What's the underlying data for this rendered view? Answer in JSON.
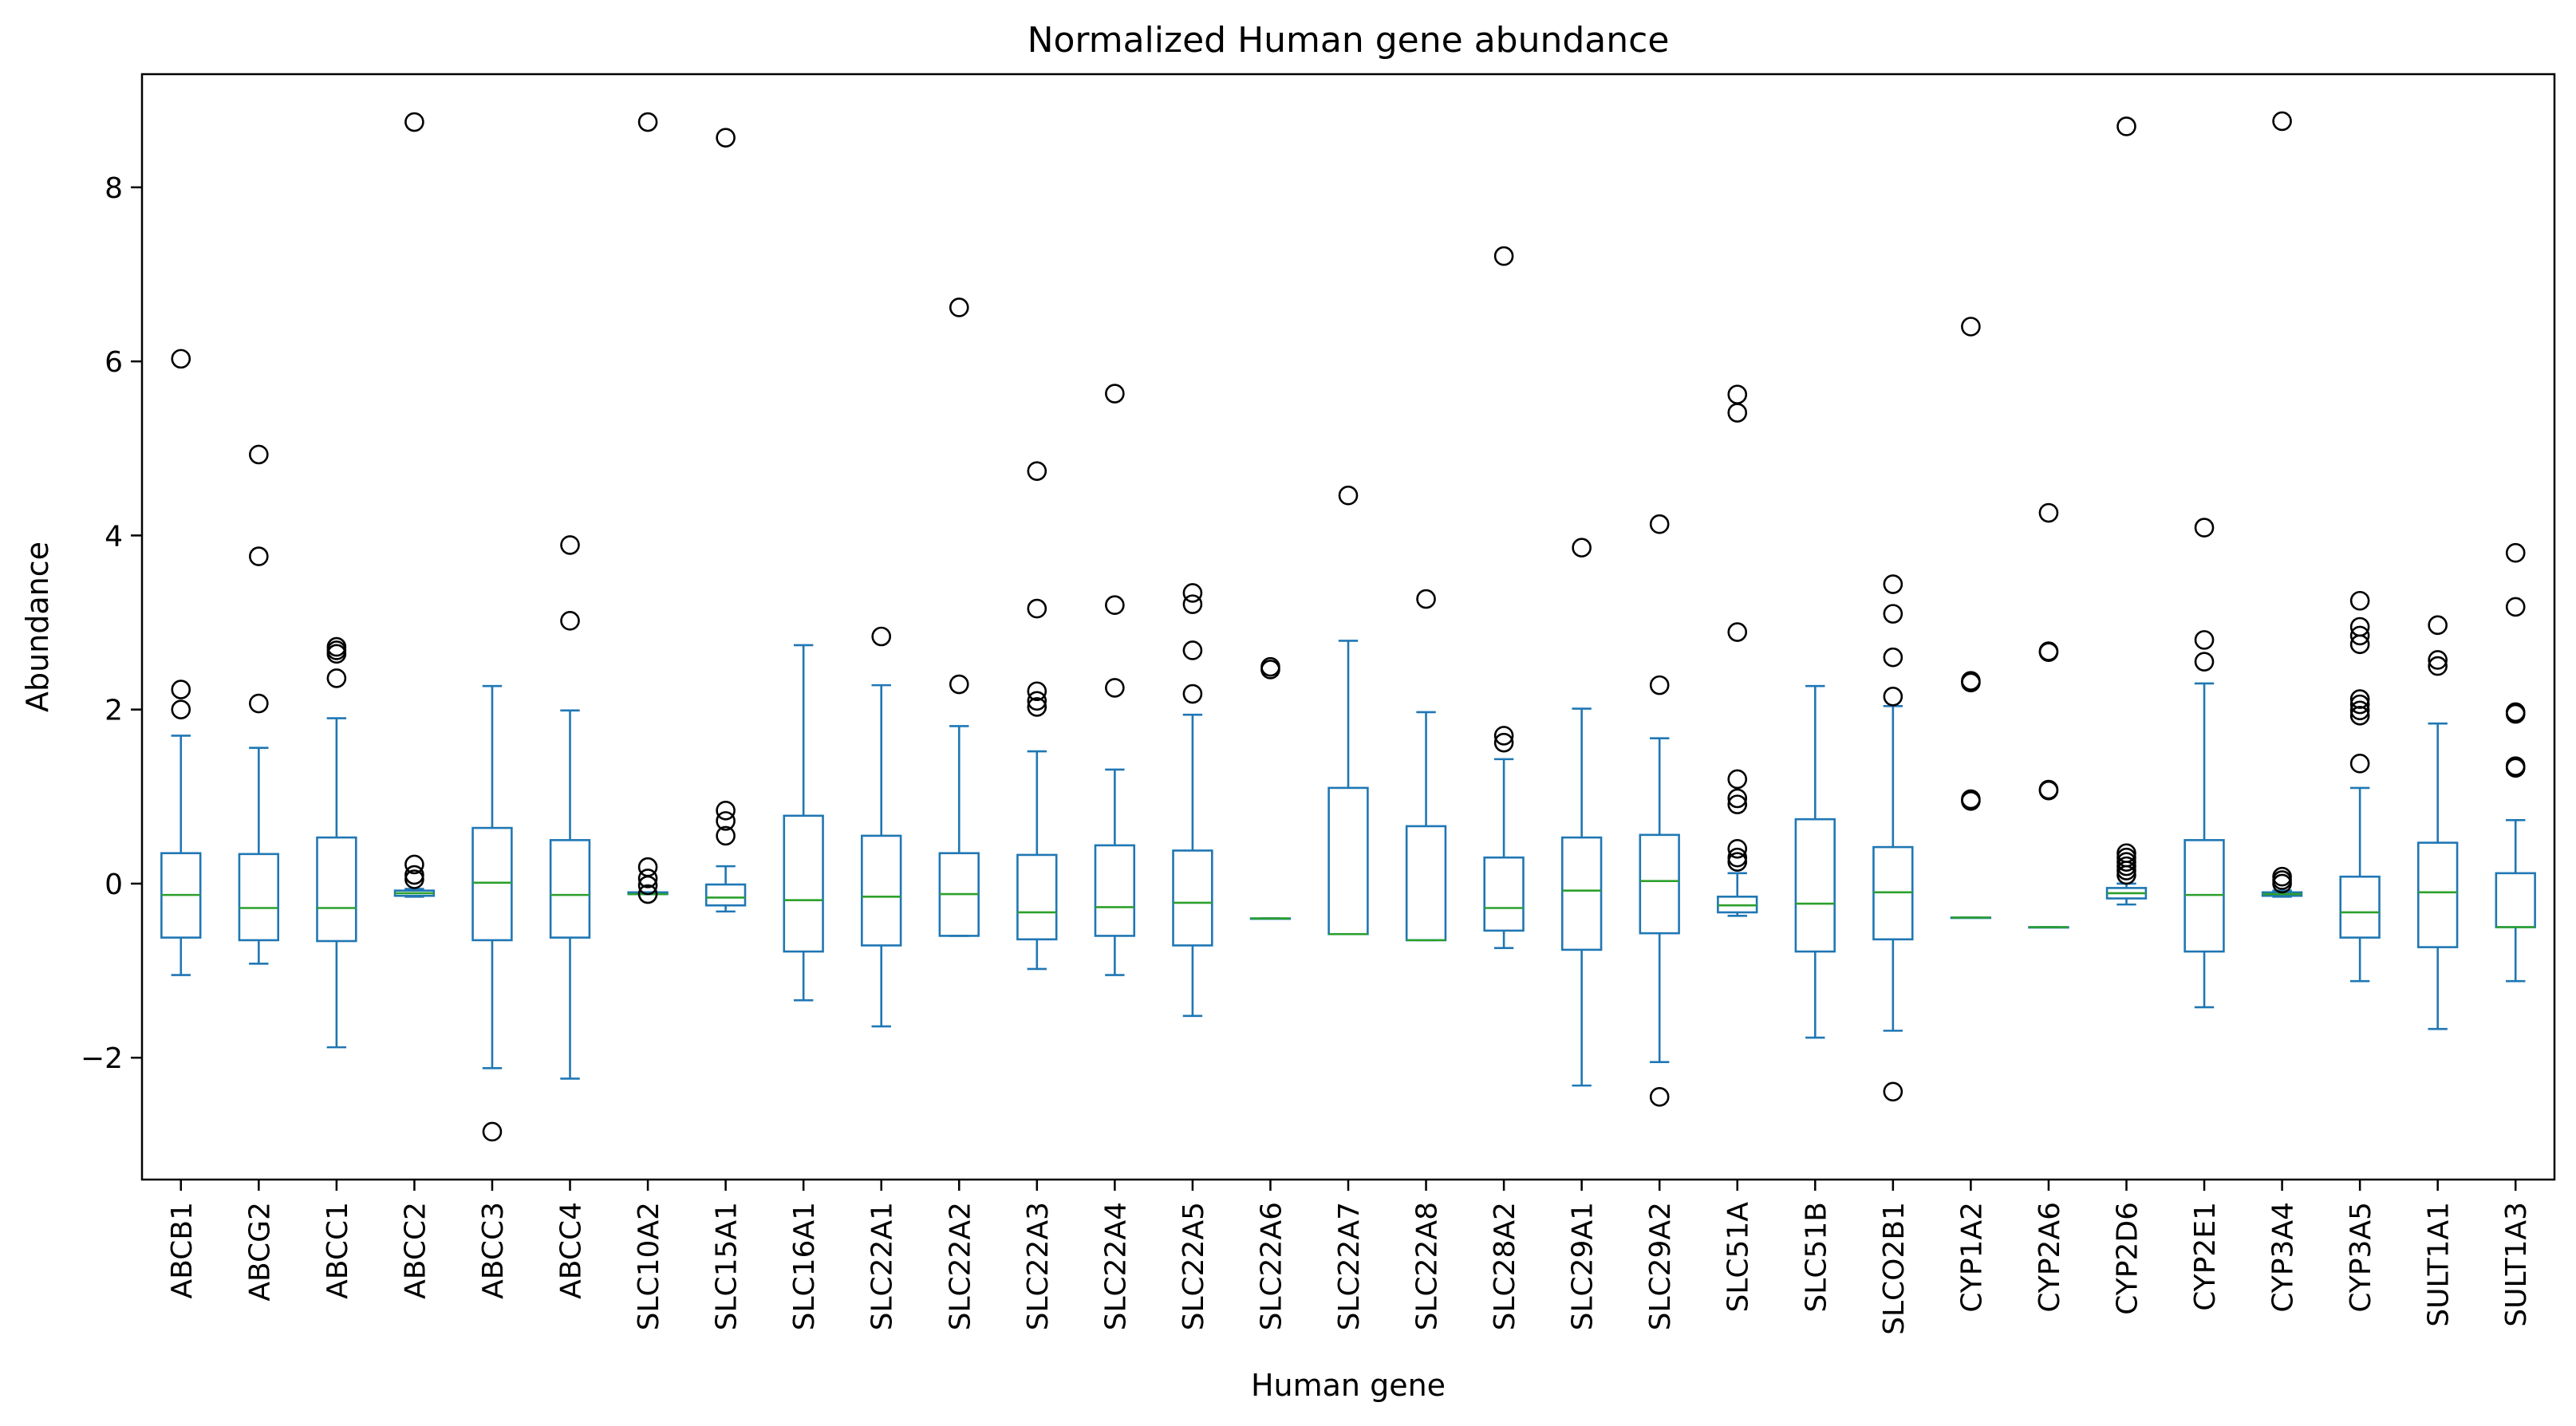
{
  "chart_data": {
    "type": "box",
    "title": "Normalized Human gene abundance",
    "xlabel": "Human gene",
    "ylabel": "Abundance",
    "ylim": [
      -3.4,
      9.3
    ],
    "yticks": [
      -2,
      0,
      2,
      4,
      6,
      8
    ],
    "grid": false,
    "colors": {
      "box": "#1f77b4",
      "median": "#2ca02c",
      "flier": "#000000"
    },
    "categories": [
      "ABCB1",
      "ABCG2",
      "ABCC1",
      "ABCC2",
      "ABCC3",
      "ABCC4",
      "SLC10A2",
      "SLC15A1",
      "SLC16A1",
      "SLC22A1",
      "SLC22A2",
      "SLC22A3",
      "SLC22A4",
      "SLC22A5",
      "SLC22A6",
      "SLC22A7",
      "SLC22A8",
      "SLC28A2",
      "SLC29A1",
      "SLC29A2",
      "SLC51A",
      "SLC51B",
      "SLCO2B1",
      "CYP1A2",
      "CYP2A6",
      "CYP2D6",
      "CYP2E1",
      "CYP3A4",
      "CYP3A5",
      "SULT1A1",
      "SULT1A3"
    ],
    "boxes": [
      {
        "whislo": -1.05,
        "q1": -0.62,
        "med": -0.13,
        "q3": 0.35,
        "whishi": 1.7,
        "fliers": [
          6.03,
          2.23,
          2.0
        ]
      },
      {
        "whislo": -0.92,
        "q1": -0.65,
        "med": -0.28,
        "q3": 0.34,
        "whishi": 1.56,
        "fliers": [
          4.93,
          3.76,
          2.07
        ]
      },
      {
        "whislo": -1.88,
        "q1": -0.66,
        "med": -0.28,
        "q3": 0.53,
        "whishi": 1.9,
        "fliers": [
          2.72,
          2.68,
          2.64,
          2.36
        ]
      },
      {
        "whislo": -0.15,
        "q1": -0.14,
        "med": -0.11,
        "q3": -0.08,
        "whishi": -0.06,
        "fliers": [
          8.75,
          0.22,
          0.1,
          0.05
        ]
      },
      {
        "whislo": -2.12,
        "q1": -0.65,
        "med": 0.01,
        "q3": 0.64,
        "whishi": 2.27,
        "fliers": [
          -2.85
        ]
      },
      {
        "whislo": -2.24,
        "q1": -0.62,
        "med": -0.13,
        "q3": 0.5,
        "whishi": 1.99,
        "fliers": [
          3.89,
          3.02
        ]
      },
      {
        "whislo": -0.12,
        "q1": -0.12,
        "med": -0.12,
        "q3": -0.1,
        "whishi": -0.1,
        "fliers": [
          8.75,
          0.19,
          0.06,
          -0.02,
          -0.12
        ]
      },
      {
        "whislo": -0.32,
        "q1": -0.25,
        "med": -0.16,
        "q3": -0.01,
        "whishi": 0.2,
        "fliers": [
          8.57,
          0.84,
          0.72,
          0.55
        ]
      },
      {
        "whislo": -1.34,
        "q1": -0.78,
        "med": -0.19,
        "q3": 0.78,
        "whishi": 2.74,
        "fliers": []
      },
      {
        "whislo": -1.64,
        "q1": -0.71,
        "med": -0.15,
        "q3": 0.55,
        "whishi": 2.28,
        "fliers": [
          2.84
        ]
      },
      {
        "whislo": -0.6,
        "q1": -0.6,
        "med": -0.12,
        "q3": 0.35,
        "whishi": 1.81,
        "fliers": [
          6.62,
          2.29
        ]
      },
      {
        "whislo": -0.98,
        "q1": -0.64,
        "med": -0.33,
        "q3": 0.33,
        "whishi": 1.52,
        "fliers": [
          4.74,
          3.16,
          2.21,
          2.1,
          2.03
        ]
      },
      {
        "whislo": -1.05,
        "q1": -0.6,
        "med": -0.27,
        "q3": 0.44,
        "whishi": 1.31,
        "fliers": [
          5.63,
          3.2,
          2.25
        ]
      },
      {
        "whislo": -1.52,
        "q1": -0.71,
        "med": -0.22,
        "q3": 0.38,
        "whishi": 1.94,
        "fliers": [
          3.34,
          3.21,
          2.68,
          2.18
        ]
      },
      {
        "whislo": -0.4,
        "q1": -0.4,
        "med": -0.4,
        "q3": -0.4,
        "whishi": -0.4,
        "fliers": [
          2.49,
          2.46
        ]
      },
      {
        "whislo": -0.58,
        "q1": -0.58,
        "med": -0.58,
        "q3": 1.1,
        "whishi": 2.79,
        "fliers": [
          4.46
        ]
      },
      {
        "whislo": -0.65,
        "q1": -0.65,
        "med": -0.65,
        "q3": 0.66,
        "whishi": 1.97,
        "fliers": [
          3.27
        ]
      },
      {
        "whislo": -0.74,
        "q1": -0.54,
        "med": -0.28,
        "q3": 0.3,
        "whishi": 1.43,
        "fliers": [
          7.21,
          1.7,
          1.62
        ]
      },
      {
        "whislo": -2.32,
        "q1": -0.76,
        "med": -0.08,
        "q3": 0.53,
        "whishi": 2.01,
        "fliers": [
          3.86
        ]
      },
      {
        "whislo": -2.05,
        "q1": -0.57,
        "med": 0.03,
        "q3": 0.56,
        "whishi": 1.67,
        "fliers": [
          4.13,
          2.28,
          -2.45
        ]
      },
      {
        "whislo": -0.37,
        "q1": -0.33,
        "med": -0.25,
        "q3": -0.15,
        "whishi": 0.12,
        "fliers": [
          5.62,
          5.41,
          2.89,
          1.2,
          0.98,
          0.91,
          0.4,
          0.3,
          0.25
        ]
      },
      {
        "whislo": -1.77,
        "q1": -0.78,
        "med": -0.23,
        "q3": 0.74,
        "whishi": 2.27,
        "fliers": []
      },
      {
        "whislo": -1.69,
        "q1": -0.64,
        "med": -0.1,
        "q3": 0.42,
        "whishi": 2.04,
        "fliers": [
          3.44,
          3.1,
          2.6,
          2.15,
          -2.39
        ]
      },
      {
        "whislo": -0.39,
        "q1": -0.39,
        "med": -0.39,
        "q3": -0.39,
        "whishi": -0.39,
        "fliers": [
          6.4,
          2.33,
          2.31,
          0.97,
          0.95
        ]
      },
      {
        "whislo": -0.5,
        "q1": -0.5,
        "med": -0.5,
        "q3": -0.5,
        "whishi": -0.5,
        "fliers": [
          4.26,
          2.67,
          2.66,
          1.08,
          1.07
        ]
      },
      {
        "whislo": -0.24,
        "q1": -0.17,
        "med": -0.11,
        "q3": -0.05,
        "whishi": 0.0,
        "fliers": [
          8.7,
          0.35,
          0.3,
          0.25,
          0.2,
          0.15,
          0.1
        ]
      },
      {
        "whislo": -1.42,
        "q1": -0.78,
        "med": -0.13,
        "q3": 0.5,
        "whishi": 2.3,
        "fliers": [
          4.09,
          2.8,
          2.55
        ]
      },
      {
        "whislo": -0.15,
        "q1": -0.14,
        "med": -0.12,
        "q3": -0.1,
        "whishi": -0.08,
        "fliers": [
          8.76,
          0.08,
          0.04,
          0.0
        ]
      },
      {
        "whislo": -1.12,
        "q1": -0.62,
        "med": -0.33,
        "q3": 0.08,
        "whishi": 1.1,
        "fliers": [
          3.25,
          2.95,
          2.85,
          2.75,
          2.12,
          2.06,
          1.99,
          1.93,
          1.38
        ]
      },
      {
        "whislo": -1.67,
        "q1": -0.73,
        "med": -0.1,
        "q3": 0.47,
        "whishi": 1.84,
        "fliers": [
          2.97,
          2.57,
          2.5
        ]
      },
      {
        "whislo": -1.12,
        "q1": -0.5,
        "med": -0.5,
        "q3": 0.12,
        "whishi": 0.73,
        "fliers": [
          3.8,
          3.18,
          1.97,
          1.95,
          1.35,
          1.33
        ]
      }
    ]
  }
}
